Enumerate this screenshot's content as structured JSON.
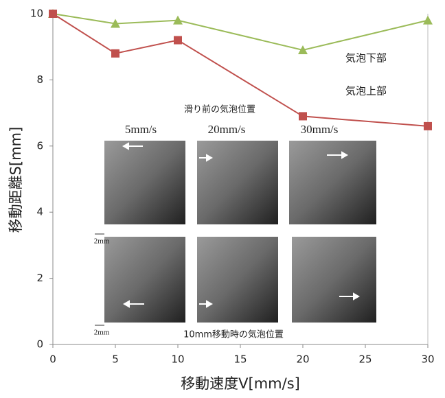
{
  "chart_data": {
    "type": "line",
    "x": [
      0,
      5,
      10,
      20,
      30
    ],
    "series": [
      {
        "name": "気泡下部",
        "color": "#9bbb59",
        "marker": "triangle",
        "values": [
          10,
          9.7,
          9.8,
          8.9,
          9.8
        ]
      },
      {
        "name": "気泡上部",
        "color": "#c0504d",
        "marker": "square",
        "values": [
          10,
          8.8,
          9.2,
          6.9,
          6.6
        ]
      }
    ],
    "xlim": [
      0,
      30
    ],
    "xticks": [
      0,
      5,
      10,
      15,
      20,
      25,
      30
    ],
    "ylim": [
      0,
      10
    ],
    "yticks": [
      0,
      2,
      4,
      6,
      8,
      10
    ],
    "x_label": "移動速度V[mm/s]",
    "y_label": "移動距離S[mm]",
    "annotations": {
      "before": "滑り前の気泡位置",
      "speeds": [
        "5mm/s",
        "20mm/s",
        "30mm/s"
      ],
      "after": "10mm移動時の気泡位置",
      "scales": [
        "2mm",
        "2mm"
      ]
    }
  }
}
